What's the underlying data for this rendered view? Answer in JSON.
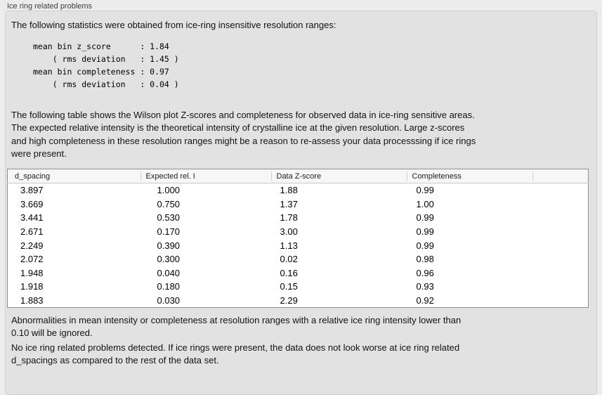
{
  "panel": {
    "title": "Ice ring related problems"
  },
  "intro": {
    "text": "The following statistics were obtained from ice-ring insensitive resolution ranges:"
  },
  "stats_block": {
    "text": "mean bin z_score      : 1.84\n    ( rms deviation   : 1.45 )\nmean bin completeness : 0.97\n    ( rms deviation   : 0.04 )"
  },
  "table_intro": {
    "text": "The following table shows the Wilson plot Z-scores and completeness for observed data in ice-ring sensitive areas.\nThe expected relative intensity is the theoretical intensity of crystalline ice at the given resolution. Large z-scores\nand high completeness in these resolution ranges might be a reason to re-assess your data processsing if ice rings\nwere present."
  },
  "table": {
    "columns": [
      "d_spacing",
      "Expected rel. I",
      "Data Z-score",
      "Completeness"
    ],
    "rows": [
      [
        "3.897",
        "1.000",
        "1.88",
        "0.99"
      ],
      [
        "3.669",
        "0.750",
        "1.37",
        "1.00"
      ],
      [
        "3.441",
        "0.530",
        "1.78",
        "0.99"
      ],
      [
        "2.671",
        "0.170",
        "3.00",
        "0.99"
      ],
      [
        "2.249",
        "0.390",
        "1.13",
        "0.99"
      ],
      [
        "2.072",
        "0.300",
        "0.02",
        "0.98"
      ],
      [
        "1.948",
        "0.040",
        "0.16",
        "0.96"
      ],
      [
        "1.918",
        "0.180",
        "0.15",
        "0.93"
      ],
      [
        "1.883",
        "0.030",
        "2.29",
        "0.92"
      ]
    ]
  },
  "notes": {
    "ignore_note": "Abnormalities in mean intensity or completeness at resolution ranges with a relative ice ring intensity lower than\n0.10 will be ignored.",
    "conclusion": "No ice ring related problems detected. If ice rings were present, the data does not look worse at ice ring related\nd_spacings as compared to the rest of the data set."
  },
  "colors": {
    "page_bg": "#ececec",
    "box_bg": "#e2e2e2",
    "box_border": "#d1d1d1",
    "table_bg": "#ffffff",
    "table_border": "#8f8f8f",
    "header_bg": "#f7f7f7",
    "text": "#161616"
  }
}
